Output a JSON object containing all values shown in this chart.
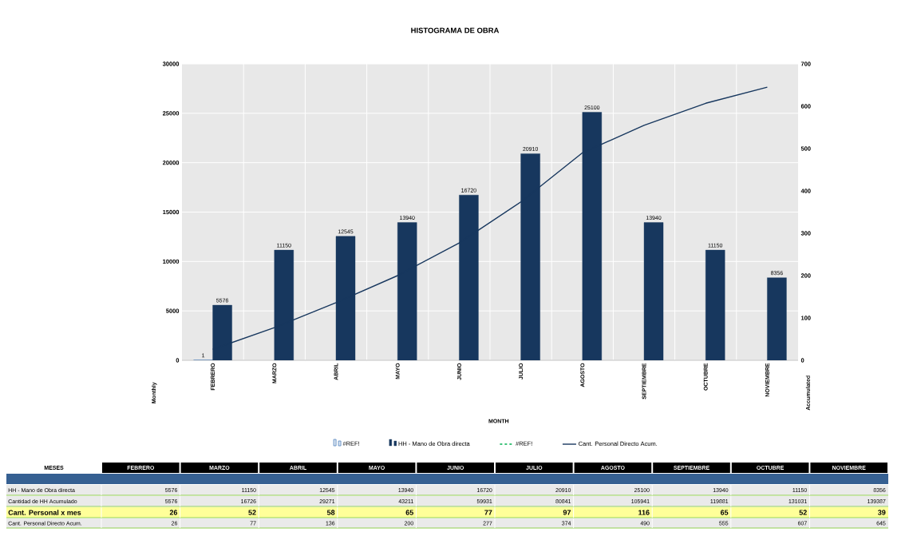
{
  "chart_data": [
    {
      "type": "bar",
      "title": "HISTOGRAMA DE OBRA",
      "xlabel": "MONTH",
      "ylabel": "Monthly",
      "y2label": "Accumulated",
      "categories": [
        "FEBRERO",
        "MARZO",
        "ABRIL",
        "MAYO",
        "JUNIO",
        "JULIO",
        "AGOSTO",
        "SEPTIEMBRE",
        "OCTUBRE",
        "NOVIEMBRE"
      ],
      "ylim": [
        0,
        30000
      ],
      "yticks": [
        0,
        5000,
        10000,
        15000,
        20000,
        25000,
        30000
      ],
      "y2lim": [
        0,
        700
      ],
      "y2ticks": [
        0,
        100,
        200,
        300,
        400,
        500,
        600,
        700
      ],
      "grid": true,
      "legend": "bottom",
      "series": [
        {
          "name": "#REF!",
          "color": "#4f81bd",
          "values": [
            1,
            null,
            null,
            null,
            null,
            null,
            null,
            null,
            null,
            null
          ],
          "value_labels": [
            "1",
            null,
            null,
            null,
            null,
            null,
            null,
            null,
            null,
            null
          ]
        },
        {
          "name": "HH - Mano de Obra directa",
          "color": "#17375e",
          "values": [
            5576,
            11150,
            12545,
            13940,
            16720,
            20910,
            25100,
            13940,
            11150,
            8356
          ],
          "value_labels": [
            "5576",
            "11150",
            "12545",
            "13940",
            "16720",
            "20910",
            "25100",
            "13940",
            "11150",
            "8356"
          ]
        },
        {
          "name": "#REF!",
          "type": "line",
          "color": "#00b050",
          "line_style": "dashed",
          "values": [
            null,
            null,
            null,
            null,
            null,
            null,
            null,
            null,
            null,
            null
          ]
        },
        {
          "name": "Cant. Personal Directo Acum.",
          "type": "line",
          "axis": "y2",
          "color": "#17375e",
          "values": [
            26,
            77,
            136,
            200,
            277,
            374,
            490,
            555,
            607,
            645
          ]
        }
      ]
    },
    {
      "type": "other",
      "annotations": [
        "MESES"
      ],
      "data_labels": true,
      "categories": [
        "FEBRERO",
        "MARZO",
        "ABRIL",
        "MAYO",
        "JUNIO",
        "JULIO",
        "AGOSTO",
        "SEPTIEMBRE",
        "OCTUBRE",
        "NOVIEMBRE"
      ],
      "series": [
        {
          "name": "HH - Mano de Obra directa",
          "values": [
            5576,
            11150,
            12545,
            13940,
            16720,
            20910,
            25100,
            13940,
            11150,
            8356
          ]
        },
        {
          "name": "Cantidad de HH Acumulado",
          "values": [
            5576,
            16726,
            29271,
            43211,
            59931,
            80841,
            105941,
            119881,
            131031,
            139387
          ]
        },
        {
          "name": "Cant. Personal x mes",
          "values": [
            26,
            52,
            58,
            65,
            77,
            97,
            116,
            65,
            52,
            39
          ]
        },
        {
          "name": "Cant. Personal Directo Acum.",
          "values": [
            26,
            77,
            136,
            200,
            277,
            374,
            490,
            555,
            607,
            645
          ]
        }
      ]
    }
  ]
}
